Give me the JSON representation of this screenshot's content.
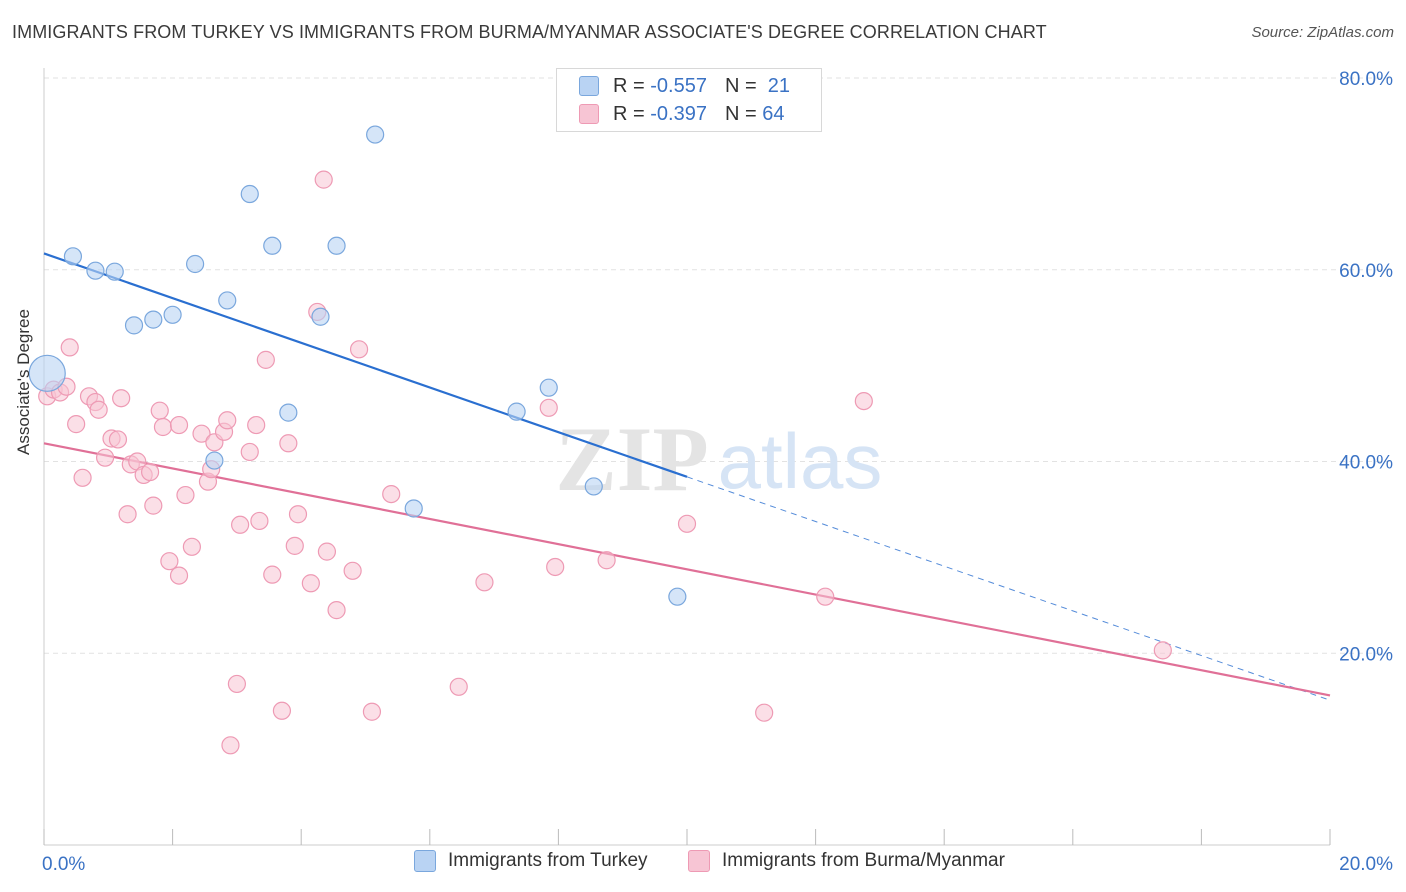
{
  "title": "IMMIGRANTS FROM TURKEY VS IMMIGRANTS FROM BURMA/MYANMAR ASSOCIATE'S DEGREE CORRELATION CHART",
  "source": "Source: ZipAtlas.com",
  "watermark": {
    "zip": "ZIP",
    "atlas": "atlas"
  },
  "legend_top": {
    "rows": [
      {
        "r_label": "R =",
        "r_value": "-0.557",
        "n_label": "N =",
        "n_value": "21"
      },
      {
        "r_label": "R =",
        "r_value": "-0.397",
        "n_label": "N =",
        "n_value": "64"
      }
    ]
  },
  "colors": {
    "turkey_fill": "#b9d3f3",
    "turkey_stroke": "#7aa7dd",
    "turkey_line": "#2a6fd0",
    "burma_fill": "#f7c5d4",
    "burma_stroke": "#ee9ab4",
    "burma_line": "#e07097",
    "tick_label": "#3a72c4",
    "grid": "#e2e2e2"
  },
  "chart_data": {
    "type": "scatter",
    "title": "IMMIGRANTS FROM TURKEY VS IMMIGRANTS FROM BURMA/MYANMAR ASSOCIATE'S DEGREE CORRELATION CHART",
    "xlabel": "",
    "ylabel": "Associate's Degree",
    "xlim": [
      0,
      20
    ],
    "ylim": [
      0,
      80
    ],
    "x_tick_labels": [
      "0.0%",
      "20.0%"
    ],
    "y_ticks": [
      20,
      40,
      60,
      80
    ],
    "y_tick_labels": [
      "20.0%",
      "40.0%",
      "60.0%",
      "80.0%"
    ],
    "grid": true,
    "legend_placement": "bottom",
    "series": [
      {
        "name": "Immigrants from Turkey",
        "r": -0.557,
        "n": 21,
        "trend": {
          "x0": 0,
          "y0": 61.7,
          "x1": 10,
          "y1": 38.4,
          "dashed_to_x": 20,
          "dashed_to_y": 15.1
        },
        "points": [
          {
            "x": 0.05,
            "y": 49.2,
            "big": true
          },
          {
            "x": 0.45,
            "y": 61.4
          },
          {
            "x": 0.8,
            "y": 59.9
          },
          {
            "x": 1.1,
            "y": 59.8
          },
          {
            "x": 1.4,
            "y": 54.2
          },
          {
            "x": 1.7,
            "y": 54.8
          },
          {
            "x": 2.0,
            "y": 55.3
          },
          {
            "x": 2.35,
            "y": 60.6
          },
          {
            "x": 2.85,
            "y": 56.8
          },
          {
            "x": 3.2,
            "y": 67.9
          },
          {
            "x": 3.55,
            "y": 62.5
          },
          {
            "x": 4.55,
            "y": 62.5
          },
          {
            "x": 5.15,
            "y": 74.1
          },
          {
            "x": 3.8,
            "y": 45.1
          },
          {
            "x": 4.3,
            "y": 55.1
          },
          {
            "x": 2.65,
            "y": 40.1
          },
          {
            "x": 5.75,
            "y": 35.1
          },
          {
            "x": 7.35,
            "y": 45.2
          },
          {
            "x": 7.85,
            "y": 47.7
          },
          {
            "x": 8.55,
            "y": 37.4
          },
          {
            "x": 9.85,
            "y": 25.9
          }
        ]
      },
      {
        "name": "Immigrants from Burma/Myanmar",
        "r": -0.397,
        "n": 64,
        "trend": {
          "x0": 0,
          "y0": 41.9,
          "x1": 20,
          "y1": 15.6
        },
        "points": [
          {
            "x": 0.05,
            "y": 46.8
          },
          {
            "x": 0.15,
            "y": 47.5
          },
          {
            "x": 0.25,
            "y": 47.2
          },
          {
            "x": 0.35,
            "y": 47.8
          },
          {
            "x": 0.4,
            "y": 51.9
          },
          {
            "x": 0.5,
            "y": 43.9
          },
          {
            "x": 0.6,
            "y": 38.3
          },
          {
            "x": 0.7,
            "y": 46.8
          },
          {
            "x": 0.8,
            "y": 46.2
          },
          {
            "x": 0.85,
            "y": 45.4
          },
          {
            "x": 0.95,
            "y": 40.4
          },
          {
            "x": 1.05,
            "y": 42.4
          },
          {
            "x": 1.15,
            "y": 42.3
          },
          {
            "x": 1.2,
            "y": 46.6
          },
          {
            "x": 1.3,
            "y": 34.5
          },
          {
            "x": 1.35,
            "y": 39.7
          },
          {
            "x": 1.45,
            "y": 40.0
          },
          {
            "x": 1.55,
            "y": 38.6
          },
          {
            "x": 1.65,
            "y": 38.9
          },
          {
            "x": 1.7,
            "y": 35.4
          },
          {
            "x": 1.8,
            "y": 45.3
          },
          {
            "x": 1.85,
            "y": 43.6
          },
          {
            "x": 1.95,
            "y": 29.6
          },
          {
            "x": 2.1,
            "y": 43.8
          },
          {
            "x": 2.1,
            "y": 28.1
          },
          {
            "x": 2.2,
            "y": 36.5
          },
          {
            "x": 2.3,
            "y": 31.1
          },
          {
            "x": 2.45,
            "y": 42.9
          },
          {
            "x": 2.55,
            "y": 37.9
          },
          {
            "x": 2.6,
            "y": 39.2
          },
          {
            "x": 2.65,
            "y": 42.0
          },
          {
            "x": 2.8,
            "y": 43.1
          },
          {
            "x": 2.85,
            "y": 44.3
          },
          {
            "x": 3.0,
            "y": 16.8
          },
          {
            "x": 3.05,
            "y": 33.4
          },
          {
            "x": 3.2,
            "y": 41.0
          },
          {
            "x": 3.3,
            "y": 43.8
          },
          {
            "x": 3.35,
            "y": 33.8
          },
          {
            "x": 3.45,
            "y": 50.6
          },
          {
            "x": 3.55,
            "y": 28.2
          },
          {
            "x": 3.7,
            "y": 14.0
          },
          {
            "x": 3.8,
            "y": 41.9
          },
          {
            "x": 3.9,
            "y": 31.2
          },
          {
            "x": 3.95,
            "y": 34.5
          },
          {
            "x": 2.9,
            "y": 10.4
          },
          {
            "x": 4.15,
            "y": 27.3
          },
          {
            "x": 4.25,
            "y": 55.6
          },
          {
            "x": 4.4,
            "y": 30.6
          },
          {
            "x": 4.35,
            "y": 69.4
          },
          {
            "x": 4.55,
            "y": 24.5
          },
          {
            "x": 4.8,
            "y": 28.6
          },
          {
            "x": 4.9,
            "y": 51.7
          },
          {
            "x": 5.1,
            "y": 13.9
          },
          {
            "x": 5.4,
            "y": 36.6
          },
          {
            "x": 6.45,
            "y": 16.5
          },
          {
            "x": 6.85,
            "y": 27.4
          },
          {
            "x": 7.85,
            "y": 45.6
          },
          {
            "x": 7.95,
            "y": 29.0
          },
          {
            "x": 8.75,
            "y": 29.7
          },
          {
            "x": 10.0,
            "y": 33.5
          },
          {
            "x": 11.2,
            "y": 13.8
          },
          {
            "x": 12.15,
            "y": 25.9
          },
          {
            "x": 12.75,
            "y": 46.3
          },
          {
            "x": 17.4,
            "y": 20.3
          }
        ]
      }
    ]
  },
  "bottom_legend": [
    {
      "label": "Immigrants from Turkey"
    },
    {
      "label": "Immigrants from Burma/Myanmar"
    }
  ]
}
